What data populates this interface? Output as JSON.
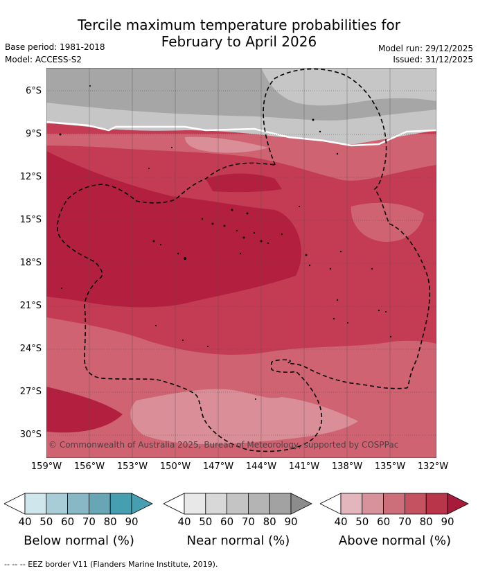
{
  "header": {
    "title_line1": "Tercile maximum temperature probabilities for",
    "title_line2": "February to April 2026",
    "base_period": "Base period: 1981-2018",
    "model": "Model: ACCESS-S2",
    "model_run": "Model run: 29/12/2025",
    "issued": "Issued: 31/12/2025"
  },
  "map": {
    "lat_labels": [
      "6°S",
      "9°S",
      "12°S",
      "15°S",
      "18°S",
      "21°S",
      "24°S",
      "27°S",
      "30°S"
    ],
    "lon_labels": [
      "159°W",
      "156°W",
      "153°W",
      "150°W",
      "147°W",
      "144°W",
      "141°W",
      "138°W",
      "135°W",
      "132°W"
    ],
    "copyright": "© Commonwealth of Australia 2025, Bureau of Meteorology, supported by COSPPac",
    "colors": {
      "above_dark": "#b3203f",
      "above_mid": "#c43c54",
      "above_light": "#cf6372",
      "above_pale": "#d98e98",
      "near_dark": "#a6a6a6",
      "near_light": "#c6c6c6",
      "eez": "#000000"
    }
  },
  "legend": {
    "ticks": [
      "40",
      "50",
      "60",
      "70",
      "80",
      "90"
    ],
    "below_label": "Below normal (%)",
    "near_label": "Near normal (%)",
    "above_label": "Above normal (%)",
    "below_colors": [
      "#cfe6ec",
      "#a9cdd6",
      "#88b8c6",
      "#68a6b6",
      "#459fb1"
    ],
    "near_colors": [
      "#e8e8e8",
      "#d8d8d8",
      "#c4c4c4",
      "#b4b4b4",
      "#a2a2a2"
    ],
    "above_colors": [
      "#e3b6bd",
      "#d8929b",
      "#cd6f7a",
      "#c45261",
      "#b8354a"
    ]
  },
  "footer": {
    "eez_note": "--  --  -- EEZ border V11 (Flanders Marine Institute, 2019)."
  }
}
